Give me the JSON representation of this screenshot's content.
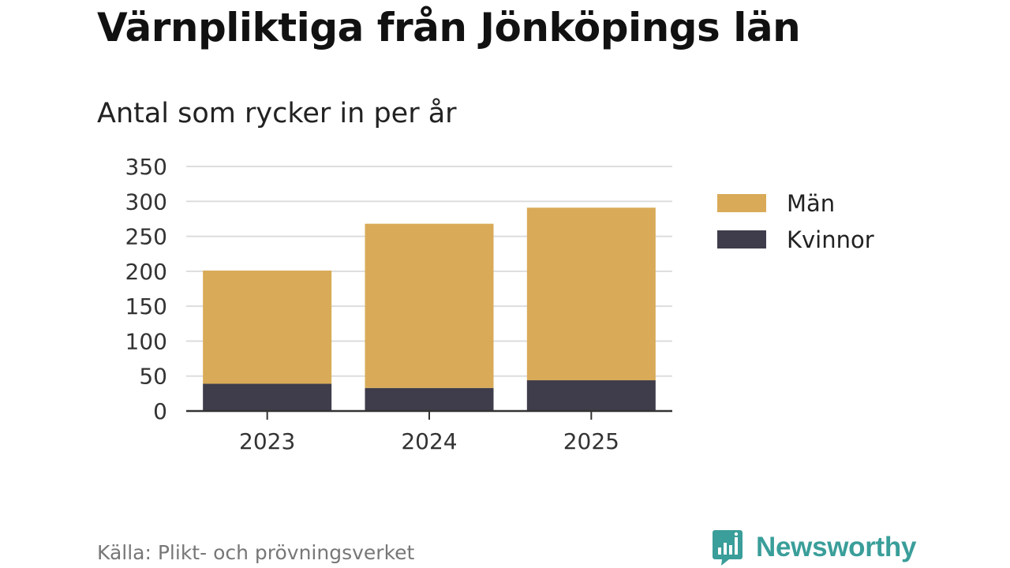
{
  "title": "Värnpliktiga från Jönköpings län",
  "subtitle": "Antal som rycker in per år",
  "source": "Källa: Plikt- och prövningsverket",
  "brand": "Newsworthy",
  "colors": {
    "man": "#d9ab58",
    "kvinnor": "#3f3d4b",
    "grid": "#dddddd",
    "axis": "#333333",
    "brand": "#3a9e9a"
  },
  "chart_data": {
    "type": "bar",
    "stacked": true,
    "categories": [
      "2023",
      "2024",
      "2025"
    ],
    "series": [
      {
        "name": "Kvinnor",
        "values": [
          39,
          33,
          44
        ]
      },
      {
        "name": "Män",
        "values": [
          162,
          235,
          247
        ]
      }
    ],
    "ylim": [
      0,
      350
    ],
    "yticks": [
      0,
      50,
      100,
      150,
      200,
      250,
      300,
      350
    ],
    "grid": true,
    "legend": {
      "position": "right",
      "order": [
        "Män",
        "Kvinnor"
      ]
    }
  }
}
